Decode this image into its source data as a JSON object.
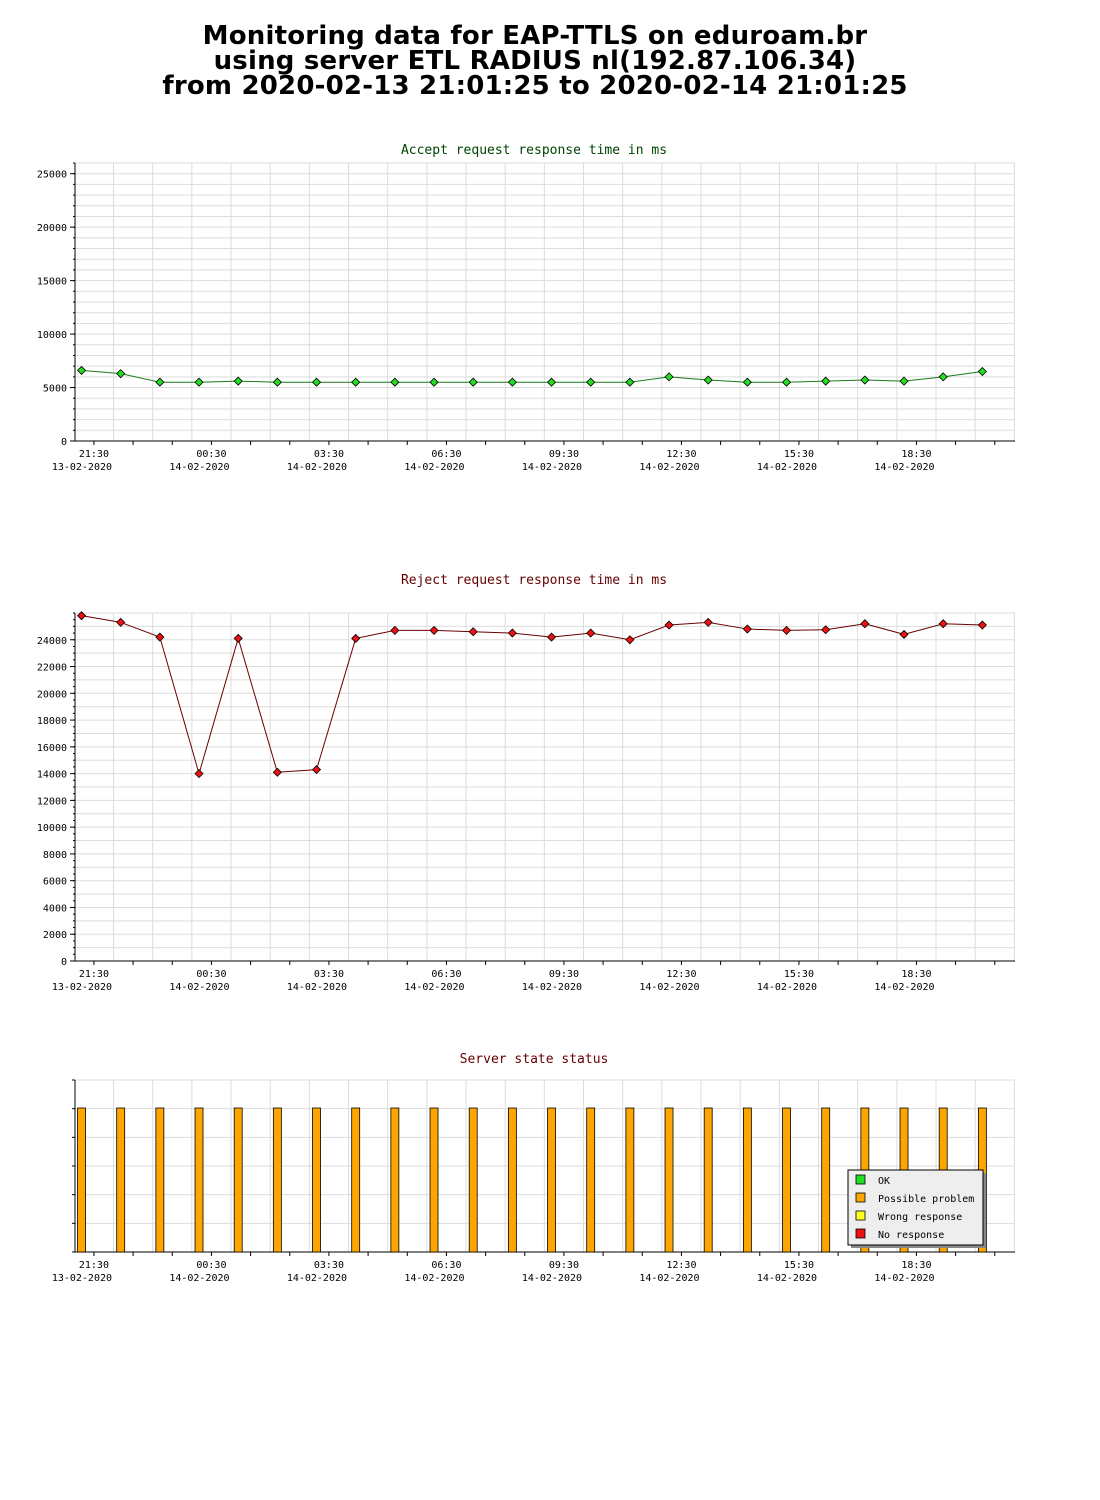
{
  "page": {
    "title_line1": "Monitoring data for EAP-TTLS on eduroam.br",
    "title_line2": "using server ETL RADIUS nl(192.87.106.34)",
    "title_line3": "from 2020-02-13 21:01:25 to 2020-02-14 21:01:25"
  },
  "colors": {
    "ok": "#22dd22",
    "possible_problem": "#ffa500",
    "wrong_response": "#ffff22",
    "no_response": "#ee1111",
    "accept_line": "#1a7a1a",
    "reject_line": "#6b0000",
    "accept_title": "#004400",
    "reject_title": "#660000",
    "grid": "#dddddd"
  },
  "chart_data": [
    {
      "type": "line",
      "title": "Accept request response time in ms",
      "x_tick_labels": [
        {
          "time": "21:30",
          "date": "13-02-2020"
        },
        {
          "time": "00:30",
          "date": "14-02-2020"
        },
        {
          "time": "03:30",
          "date": "14-02-2020"
        },
        {
          "time": "06:30",
          "date": "14-02-2020"
        },
        {
          "time": "09:30",
          "date": "14-02-2020"
        },
        {
          "time": "12:30",
          "date": "14-02-2020"
        },
        {
          "time": "15:30",
          "date": "14-02-2020"
        },
        {
          "time": "18:30",
          "date": "14-02-2020"
        }
      ],
      "x": [
        "21:01",
        "22:01",
        "23:01",
        "00:01",
        "01:01",
        "02:01",
        "03:01",
        "04:01",
        "05:01",
        "06:01",
        "07:01",
        "08:01",
        "09:01",
        "10:01",
        "11:01",
        "12:01",
        "13:01",
        "14:01",
        "15:01",
        "16:01",
        "17:01",
        "18:01",
        "19:01",
        "20:01"
      ],
      "values": [
        6600,
        6300,
        5500,
        5500,
        5600,
        5500,
        5500,
        5500,
        5500,
        5500,
        5500,
        5500,
        5500,
        5500,
        5500,
        6000,
        5700,
        5500,
        5500,
        5600,
        5700,
        5600,
        6000,
        6500
      ],
      "ylim": [
        0,
        26000
      ],
      "y_ticks": [
        0,
        5000,
        10000,
        15000,
        20000,
        25000
      ],
      "grid": true
    },
    {
      "type": "line",
      "title": "Reject request response time in ms",
      "x_tick_labels": [
        {
          "time": "21:30",
          "date": "13-02-2020"
        },
        {
          "time": "00:30",
          "date": "14-02-2020"
        },
        {
          "time": "03:30",
          "date": "14-02-2020"
        },
        {
          "time": "06:30",
          "date": "14-02-2020"
        },
        {
          "time": "09:30",
          "date": "14-02-2020"
        },
        {
          "time": "12:30",
          "date": "14-02-2020"
        },
        {
          "time": "15:30",
          "date": "14-02-2020"
        },
        {
          "time": "18:30",
          "date": "14-02-2020"
        }
      ],
      "x": [
        "21:01",
        "22:01",
        "23:01",
        "00:01",
        "01:01",
        "02:01",
        "03:01",
        "04:01",
        "05:01",
        "06:01",
        "07:01",
        "08:01",
        "09:01",
        "10:01",
        "11:01",
        "12:01",
        "13:01",
        "14:01",
        "15:01",
        "16:01",
        "17:01",
        "18:01",
        "19:01",
        "20:01"
      ],
      "values": [
        25800,
        25300,
        24200,
        14000,
        24100,
        14100,
        14300,
        24100,
        24700,
        24700,
        24600,
        24500,
        24200,
        24500,
        24000,
        25100,
        25300,
        24800,
        24700,
        24750,
        25200,
        24400,
        25200,
        25100
      ],
      "ylim": [
        0,
        26000
      ],
      "y_ticks": [
        0,
        2000,
        4000,
        6000,
        8000,
        10000,
        12000,
        14000,
        16000,
        18000,
        20000,
        22000,
        24000
      ],
      "grid": true
    },
    {
      "type": "bar",
      "title": "Server state status",
      "x_tick_labels": [
        {
          "time": "21:30",
          "date": "13-02-2020"
        },
        {
          "time": "00:30",
          "date": "14-02-2020"
        },
        {
          "time": "03:30",
          "date": "14-02-2020"
        },
        {
          "time": "06:30",
          "date": "14-02-2020"
        },
        {
          "time": "09:30",
          "date": "14-02-2020"
        },
        {
          "time": "12:30",
          "date": "14-02-2020"
        },
        {
          "time": "15:30",
          "date": "14-02-2020"
        },
        {
          "time": "18:30",
          "date": "14-02-2020"
        }
      ],
      "x": [
        "21:01",
        "22:01",
        "23:01",
        "00:01",
        "01:01",
        "02:01",
        "03:01",
        "04:01",
        "05:01",
        "06:01",
        "07:01",
        "08:01",
        "09:01",
        "10:01",
        "11:01",
        "12:01",
        "13:01",
        "14:01",
        "15:01",
        "16:01",
        "17:01",
        "18:01",
        "19:01",
        "20:01"
      ],
      "states": [
        "Possible problem",
        "Possible problem",
        "Possible problem",
        "Possible problem",
        "Possible problem",
        "Possible problem",
        "Possible problem",
        "Possible problem",
        "Possible problem",
        "Possible problem",
        "Possible problem",
        "Possible problem",
        "Possible problem",
        "Possible problem",
        "Possible problem",
        "Possible problem",
        "Possible problem",
        "Possible problem",
        "Possible problem",
        "Possible problem",
        "Possible problem",
        "Possible problem",
        "Possible problem",
        "Possible problem"
      ],
      "legend": [
        "OK",
        "Possible problem",
        "Wrong response",
        "No response"
      ],
      "legend_position": "bottom-right",
      "grid": true
    }
  ]
}
